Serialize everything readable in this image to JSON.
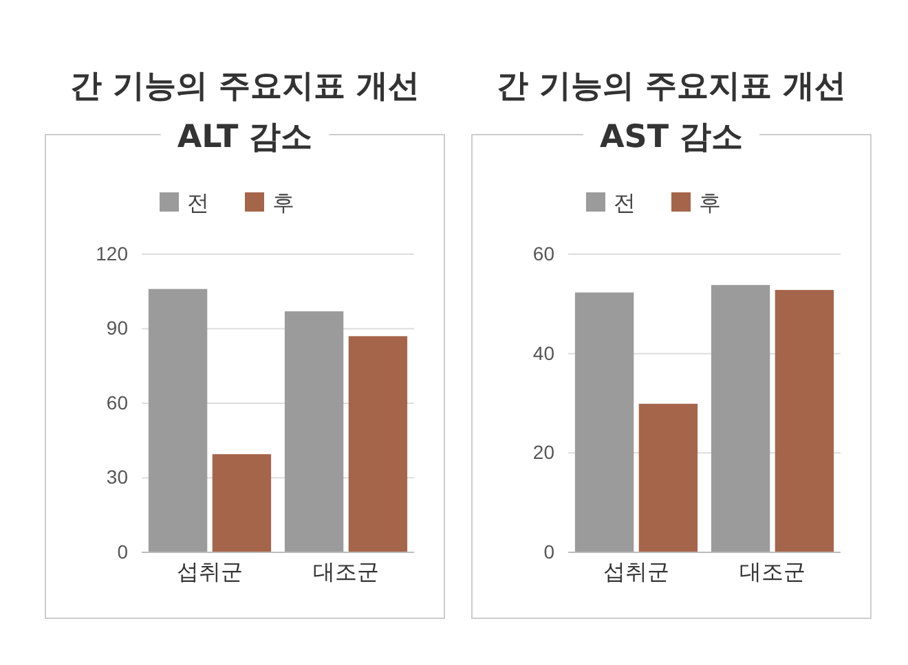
{
  "chart_data": [
    {
      "type": "bar",
      "title": "간 기능의 주요지표 개선",
      "subtitle": "ALT 감소",
      "categories": [
        "섭취군",
        "대조군"
      ],
      "series": [
        {
          "name": "전",
          "color": "#9b9b9b",
          "values": [
            106,
            97
          ]
        },
        {
          "name": "후",
          "color": "#a5654a",
          "values": [
            39.5,
            87
          ]
        }
      ],
      "ylim": [
        0,
        120
      ],
      "yticks": [
        0,
        30,
        60,
        90,
        120
      ],
      "grid": "y",
      "legend": "top"
    },
    {
      "type": "bar",
      "title": "간 기능의 주요지표 개선",
      "subtitle": "AST 감소",
      "categories": [
        "섭취군",
        "대조군"
      ],
      "series": [
        {
          "name": "전",
          "color": "#9b9b9b",
          "values": [
            52.3,
            53.8
          ]
        },
        {
          "name": "후",
          "color": "#a5654a",
          "values": [
            29.9,
            52.8
          ]
        }
      ],
      "ylim": [
        0,
        60
      ],
      "yticks": [
        0,
        20,
        40,
        60
      ],
      "grid": "y",
      "legend": "top"
    }
  ]
}
